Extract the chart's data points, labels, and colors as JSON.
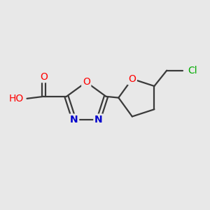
{
  "background_color": "#e8e8e8",
  "bond_color": "#3a3a3a",
  "atom_colors": {
    "O": "#ff0000",
    "N": "#0000cc",
    "Cl": "#00aa00",
    "C": "#3a3a3a",
    "H": "#707070"
  },
  "figsize": [
    3.0,
    3.0
  ],
  "dpi": 100,
  "lw": 1.6
}
